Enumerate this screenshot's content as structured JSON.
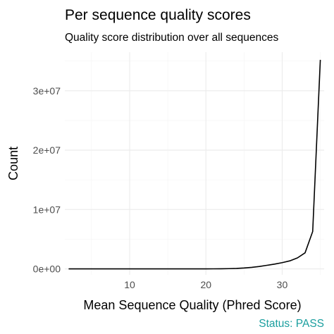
{
  "chart_data": {
    "type": "line",
    "title": "Per sequence quality scores",
    "subtitle": "Quality score distribution over all sequences",
    "xlabel": "Mean Sequence Quality (Phred Score)",
    "ylabel": "Count",
    "xlim": [
      1.5,
      35.5
    ],
    "ylim": [
      -1000000,
      36500000
    ],
    "x_ticks": [
      10,
      20,
      30
    ],
    "x_tick_labels": [
      "10",
      "20",
      "30"
    ],
    "y_ticks": [
      0,
      10000000,
      20000000,
      30000000
    ],
    "y_tick_labels": [
      "0e+00",
      "1e+07",
      "2e+07",
      "3e+07"
    ],
    "grid": true,
    "series": [
      {
        "color": "#000000",
        "x": [
          2,
          3,
          4,
          5,
          6,
          7,
          8,
          9,
          10,
          11,
          12,
          13,
          14,
          15,
          16,
          17,
          18,
          19,
          20,
          21,
          22,
          23,
          24,
          25,
          26,
          27,
          28,
          29,
          30,
          31,
          32,
          33,
          34,
          35
        ],
        "y": [
          0,
          0,
          0,
          0,
          0,
          0,
          0,
          0,
          0,
          0,
          0,
          0,
          0,
          0,
          0,
          0,
          0,
          0,
          5000,
          10000,
          20000,
          40000,
          80000,
          150000,
          250000,
          400000,
          600000,
          800000,
          1050000,
          1350000,
          1850000,
          2700000,
          6300000,
          35200000
        ]
      }
    ]
  },
  "status": {
    "text": "Status: PASS",
    "color": "#1a9e9e"
  }
}
